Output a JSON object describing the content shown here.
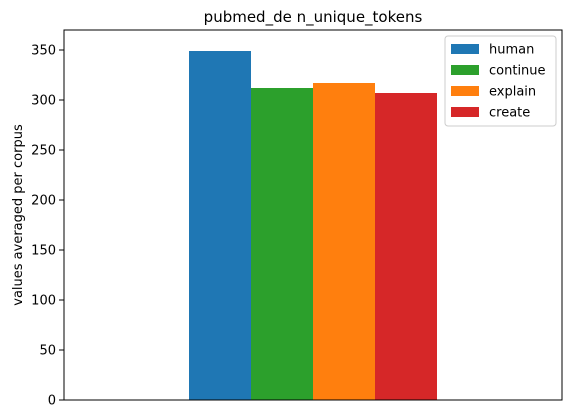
{
  "chart_data": {
    "type": "bar",
    "title": "pubmed_de n_unique_tokens",
    "xlabel": "",
    "ylabel": "values averaged per corpus",
    "ylim": [
      0,
      370
    ],
    "yticks": [
      0,
      50,
      100,
      150,
      200,
      250,
      300,
      350
    ],
    "categories": [
      ""
    ],
    "series": [
      {
        "name": "human",
        "values": [
          349
        ],
        "color": "#1f77b4"
      },
      {
        "name": "continue",
        "values": [
          312
        ],
        "color": "#2ca02c"
      },
      {
        "name": "explain",
        "values": [
          317
        ],
        "color": "#ff7f0e"
      },
      {
        "name": "create",
        "values": [
          307
        ],
        "color": "#d62728"
      }
    ],
    "grid": false,
    "legend_position": "top-right"
  }
}
